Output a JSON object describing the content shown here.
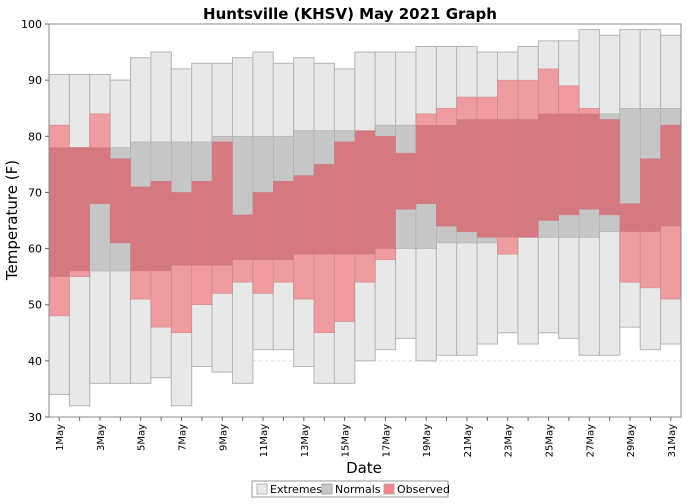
{
  "chart_data": {
    "type": "bar",
    "title": "Huntsville (KHSV) May 2021 Graph",
    "xlabel": "Date",
    "ylabel": "Temperature (F)",
    "ylim": [
      30,
      100
    ],
    "yticks": [
      30,
      40,
      50,
      60,
      70,
      80,
      90,
      100
    ],
    "grid": true,
    "legend_position": "bottom-center",
    "categories": [
      "1May",
      "2May",
      "3May",
      "4May",
      "5May",
      "6May",
      "7May",
      "8May",
      "9May",
      "10May",
      "11May",
      "12May",
      "13May",
      "14May",
      "15May",
      "16May",
      "17May",
      "18May",
      "19May",
      "20May",
      "21May",
      "22May",
      "23May",
      "24May",
      "25May",
      "26May",
      "27May",
      "28May",
      "29May",
      "30May",
      "31May"
    ],
    "tick_labels": [
      "1May",
      "3May",
      "5May",
      "7May",
      "9May",
      "11May",
      "13May",
      "15May",
      "17May",
      "19May",
      "21May",
      "23May",
      "25May",
      "27May",
      "29May",
      "31May"
    ],
    "legend": [
      "Extremes",
      "Normals",
      "Observed"
    ],
    "colors": {
      "extremes_fill": "#e8e8e8",
      "extremes_stroke": "#b5b5b5",
      "normals_fill": "#c6c6c6",
      "observed_fill": "#f0868c",
      "observed_overlap": "#d2767d",
      "grid": "#dddddd"
    },
    "series": [
      {
        "name": "Extremes",
        "high": [
          91,
          91,
          91,
          90,
          94,
          95,
          92,
          93,
          93,
          94,
          95,
          93,
          94,
          93,
          92,
          95,
          95,
          95,
          96,
          96,
          96,
          95,
          95,
          96,
          97,
          97,
          99,
          98,
          99,
          99,
          98
        ],
        "low": [
          34,
          32,
          36,
          36,
          36,
          37,
          32,
          39,
          38,
          36,
          42,
          42,
          39,
          36,
          36,
          40,
          42,
          44,
          40,
          41,
          41,
          43,
          45,
          43,
          45,
          44,
          41,
          41,
          46,
          42,
          43
        ]
      },
      {
        "name": "Normals",
        "high": [
          78,
          78,
          78,
          78,
          79,
          79,
          79,
          79,
          80,
          80,
          80,
          80,
          81,
          81,
          81,
          81,
          82,
          82,
          82,
          82,
          83,
          83,
          83,
          83,
          84,
          84,
          84,
          84,
          85,
          85,
          85
        ],
        "low": [
          55,
          56,
          56,
          56,
          56,
          56,
          57,
          57,
          57,
          58,
          58,
          58,
          59,
          59,
          59,
          59,
          60,
          60,
          60,
          61,
          61,
          61,
          62,
          62,
          62,
          62,
          62,
          63,
          63,
          63,
          64
        ]
      },
      {
        "name": "Observed",
        "high": [
          82,
          78,
          84,
          76,
          71,
          72,
          70,
          72,
          79,
          66,
          70,
          72,
          73,
          75,
          79,
          81,
          80,
          77,
          84,
          85,
          87,
          87,
          90,
          90,
          92,
          89,
          85,
          83,
          68,
          76,
          82
        ],
        "low": [
          48,
          55,
          68,
          61,
          51,
          46,
          45,
          50,
          52,
          54,
          52,
          54,
          51,
          45,
          47,
          54,
          58,
          67,
          68,
          64,
          63,
          62,
          59,
          62,
          65,
          66,
          67,
          66,
          54,
          53,
          51
        ]
      }
    ]
  }
}
